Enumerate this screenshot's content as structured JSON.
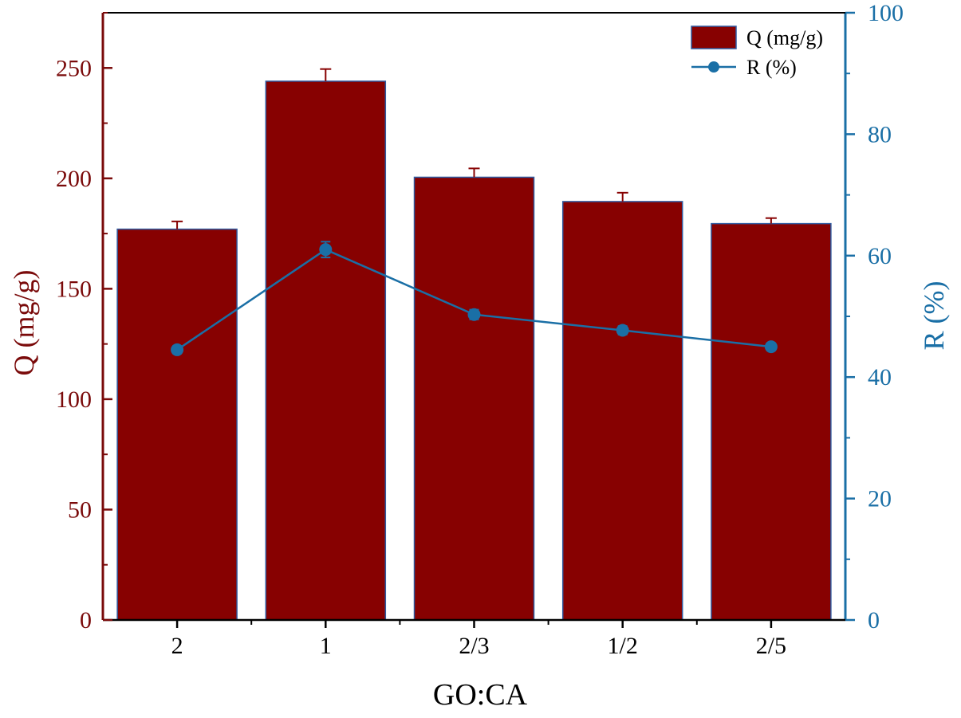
{
  "chart_data": {
    "type": "bar",
    "xlabel": "GO:CA",
    "categories": [
      "2",
      "1",
      "2/3",
      "1/2",
      "2/5"
    ],
    "colors": {
      "bar": "#870101",
      "bar_edge": "#2f5aa0",
      "left_axis": "#7a0a0a",
      "right_axis": "#1a6fa6",
      "x_axis": "#000000"
    },
    "left_axis": {
      "label": "Q (mg/g)",
      "ylim": [
        0,
        275
      ],
      "ticks": [
        0,
        50,
        100,
        150,
        200,
        250
      ]
    },
    "right_axis": {
      "label": "R (%)",
      "ylim": [
        0,
        100
      ],
      "ticks": [
        0,
        20,
        40,
        60,
        80,
        100
      ]
    },
    "series": [
      {
        "name": "Q (mg/g)",
        "kind": "bar",
        "axis": "left",
        "values": [
          177,
          244,
          200.5,
          189.5,
          179.5
        ],
        "errors": [
          3.5,
          5.5,
          4,
          4,
          2.5
        ]
      },
      {
        "name": "R (%)",
        "kind": "line",
        "axis": "right",
        "values": [
          44.5,
          61,
          50.3,
          47.7,
          45
        ],
        "errors": [
          0.6,
          1.3,
          0.8,
          0.7,
          0.6
        ]
      }
    ],
    "legend": "top-right",
    "grid": false
  }
}
